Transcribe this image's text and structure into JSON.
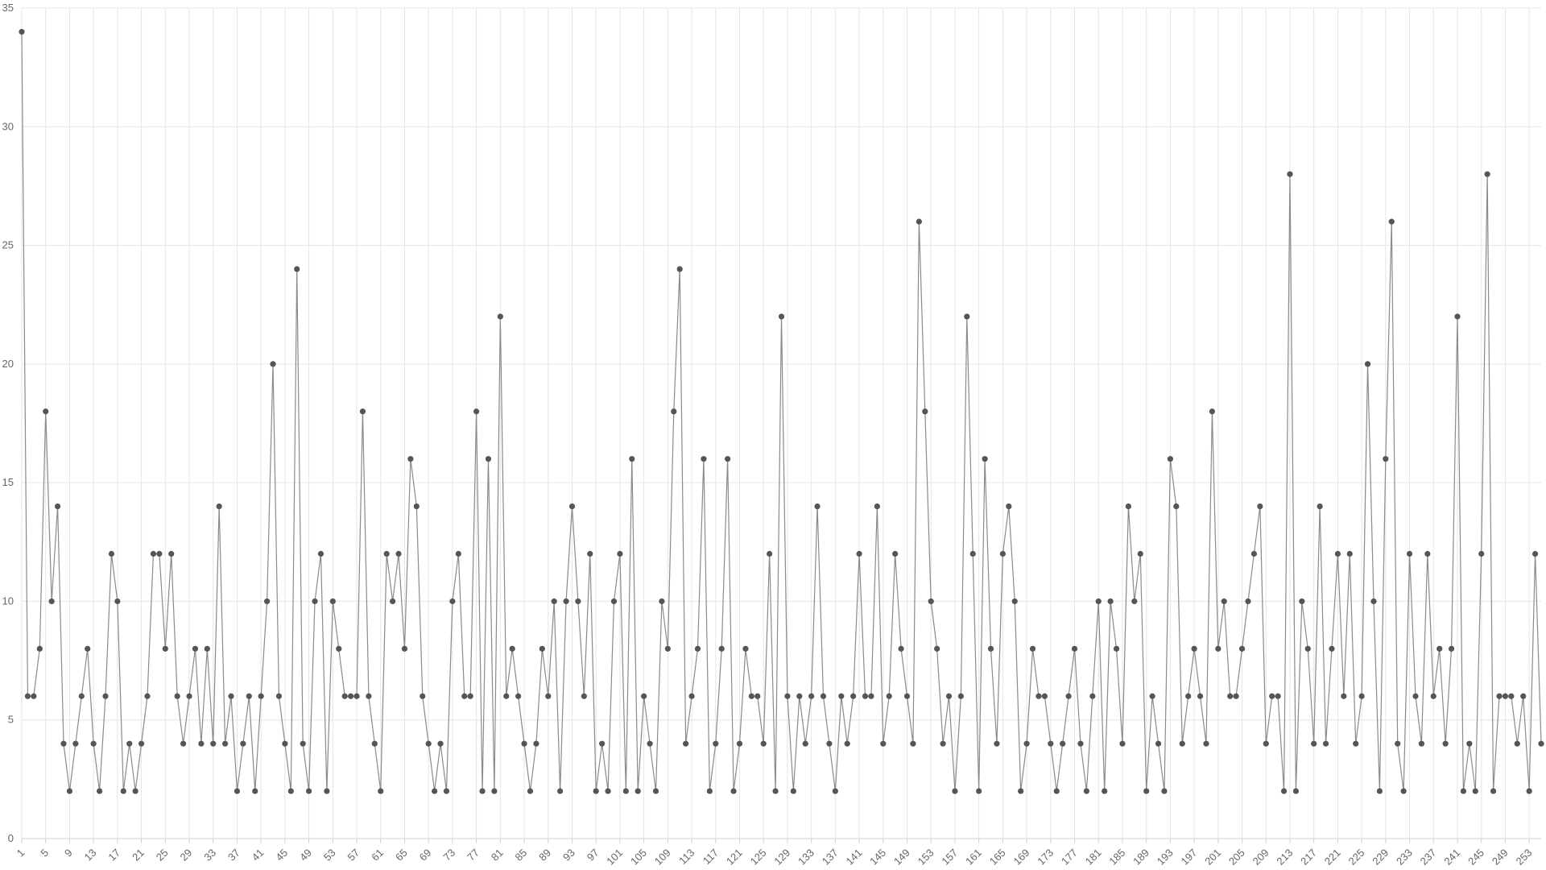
{
  "chart_data": {
    "type": "line",
    "x": [
      1,
      2,
      3,
      4,
      5,
      6,
      7,
      8,
      9,
      10,
      11,
      12,
      13,
      14,
      15,
      16,
      17,
      18,
      19,
      20,
      21,
      22,
      23,
      24,
      25,
      26,
      27,
      28,
      29,
      30,
      31,
      32,
      33,
      34,
      35,
      36,
      37,
      38,
      39,
      40,
      41,
      42,
      43,
      44,
      45,
      46,
      47,
      48,
      49,
      50,
      51,
      52,
      53,
      54,
      55,
      56,
      57,
      58,
      59,
      60,
      61,
      62,
      63,
      64,
      65,
      66,
      67,
      68,
      69,
      70,
      71,
      72,
      73,
      74,
      75,
      76,
      77,
      78,
      79,
      80,
      81,
      82,
      83,
      84,
      85,
      86,
      87,
      88,
      89,
      90,
      91,
      92,
      93,
      94,
      95,
      96,
      97,
      98,
      99,
      100,
      101,
      102,
      103,
      104,
      105,
      106,
      107,
      108,
      109,
      110,
      111,
      112,
      113,
      114,
      115,
      116,
      117,
      118,
      119,
      120,
      121,
      122,
      123,
      124,
      125,
      126,
      127,
      128,
      129,
      130,
      131,
      132,
      133,
      134,
      135,
      136,
      137,
      138,
      139,
      140,
      141,
      142,
      143,
      144,
      145,
      146,
      147,
      148,
      149,
      150,
      151,
      152,
      153,
      154,
      155,
      156,
      157,
      158,
      159,
      160,
      161,
      162,
      163,
      164,
      165,
      166,
      167,
      168,
      169,
      170,
      171,
      172,
      173,
      174,
      175,
      176,
      177,
      178,
      179,
      180,
      181,
      182,
      183,
      184,
      185,
      186,
      187,
      188,
      189,
      190,
      191,
      192,
      193,
      194,
      195,
      196,
      197,
      198,
      199,
      200,
      201,
      202,
      203,
      204,
      205,
      206,
      207,
      208,
      209,
      210,
      211,
      212,
      213,
      214,
      215,
      216,
      217,
      218,
      219,
      220,
      221,
      222,
      223,
      224,
      225,
      226,
      227,
      228,
      229,
      230,
      231,
      232,
      233,
      234,
      235,
      236,
      237,
      238,
      239,
      240,
      241,
      242,
      243,
      244,
      245,
      246,
      247,
      248,
      249,
      250,
      251,
      252,
      253,
      254,
      255
    ],
    "series": [
      {
        "color": "#555555",
        "line_color": "#8a8a8a",
        "values": [
          34,
          6,
          6,
          8,
          18,
          10,
          14,
          4,
          2,
          4,
          6,
          8,
          4,
          2,
          6,
          12,
          10,
          2,
          4,
          2,
          4,
          6,
          12,
          12,
          8,
          12,
          6,
          4,
          6,
          8,
          4,
          8,
          4,
          14,
          4,
          6,
          2,
          4,
          6,
          2,
          6,
          10,
          20,
          6,
          4,
          2,
          24,
          4,
          2,
          10,
          12,
          2,
          10,
          8,
          6,
          6,
          6,
          18,
          6,
          4,
          2,
          12,
          10,
          12,
          8,
          16,
          14,
          6,
          4,
          2,
          4,
          2,
          10,
          12,
          6,
          6,
          18,
          2,
          16,
          2,
          22,
          6,
          8,
          6,
          4,
          2,
          4,
          8,
          6,
          10,
          2,
          10,
          14,
          10,
          6,
          12,
          2,
          4,
          2,
          10,
          12,
          2,
          16,
          2,
          6,
          4,
          2,
          10,
          8,
          18,
          24,
          4,
          6,
          8,
          16,
          2,
          4,
          8,
          16,
          2,
          4,
          8,
          6,
          6,
          4,
          12,
          2,
          22,
          6,
          2,
          6,
          4,
          6,
          14,
          6,
          4,
          2,
          6,
          4,
          6,
          12,
          6,
          6,
          14,
          4,
          6,
          12,
          8,
          6,
          4,
          26,
          18,
          10,
          8,
          4,
          6,
          2,
          6,
          22,
          12,
          2,
          16,
          8,
          4,
          12,
          14,
          10,
          2,
          4,
          8,
          6,
          6,
          4,
          2,
          4,
          6,
          8,
          4,
          2,
          6,
          10,
          2,
          10,
          8,
          4,
          14,
          10,
          12,
          2,
          6,
          4,
          2,
          16,
          14,
          4,
          6,
          8,
          6,
          4,
          18,
          8,
          10,
          6,
          6,
          8,
          10,
          12,
          14,
          4,
          6,
          6,
          2,
          28,
          2,
          10,
          8,
          4,
          14,
          4,
          8,
          12,
          6,
          12,
          4,
          6,
          20,
          10,
          2,
          16,
          26,
          4,
          2,
          12,
          6,
          4,
          12,
          6,
          8,
          4,
          8,
          22,
          2,
          4,
          2,
          12,
          28,
          2,
          6,
          6,
          6,
          4,
          6,
          2,
          12,
          4
        ]
      }
    ],
    "xlim": [
      1,
      255
    ],
    "xticks": [
      1,
      5,
      9,
      13,
      17,
      21,
      25,
      29,
      33,
      37,
      41,
      45,
      49,
      53,
      57,
      61,
      65,
      69,
      73,
      77,
      81,
      85,
      89,
      93,
      97,
      101,
      105,
      109,
      113,
      117,
      121,
      125,
      129,
      133,
      137,
      141,
      145,
      149,
      153,
      157,
      161,
      165,
      169,
      173,
      177,
      181,
      185,
      189,
      193,
      197,
      201,
      205,
      209,
      213,
      217,
      221,
      225,
      229,
      233,
      237,
      241,
      245,
      249,
      253
    ],
    "ylim": [
      0,
      35
    ],
    "yticks": [
      0,
      5,
      10,
      15,
      20,
      25,
      30,
      35
    ],
    "grid": true
  }
}
